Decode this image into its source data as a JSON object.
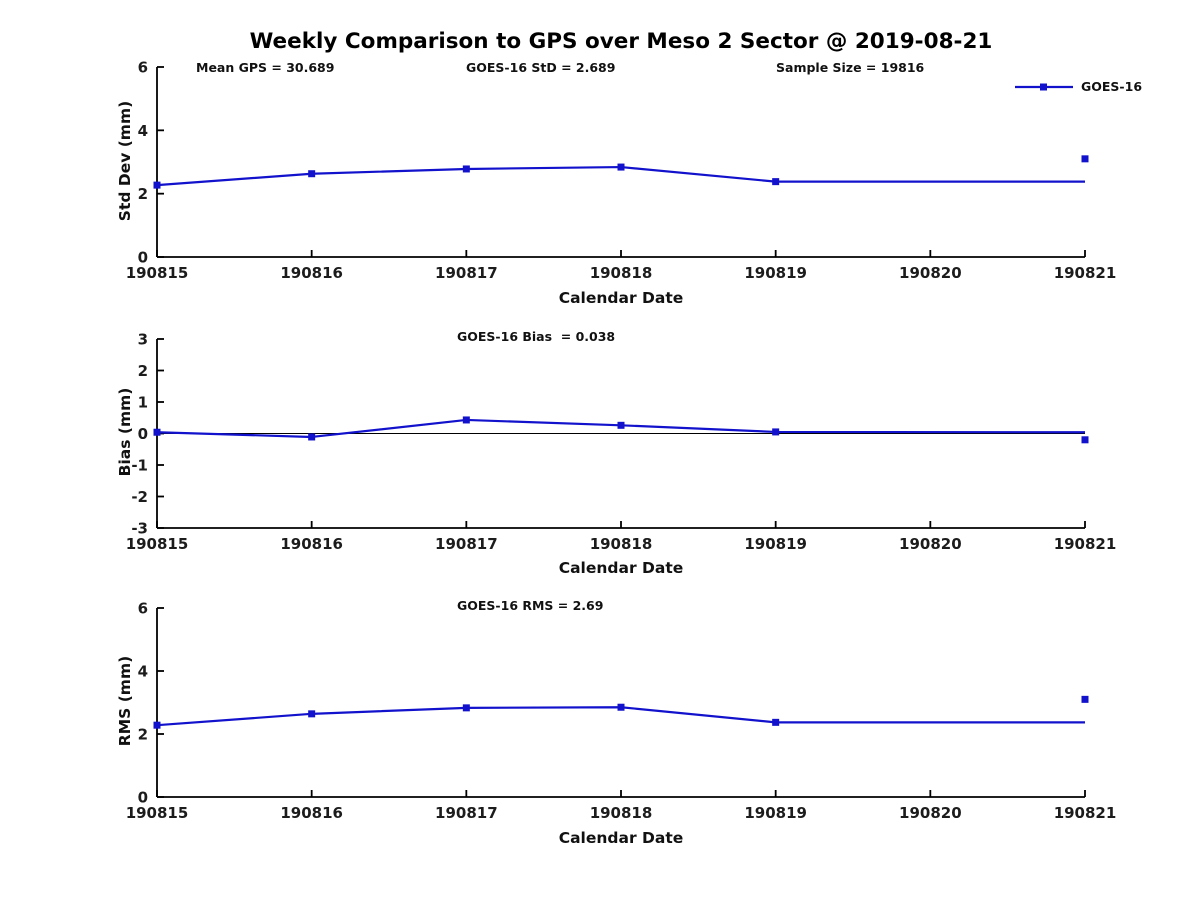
{
  "figure": {
    "title": "Weekly Comparison to GPS over Meso 2 Sector @ 2019-08-21",
    "background": "#ffffff"
  },
  "colors": {
    "series_blue": "#1212cc",
    "axis": "#000000",
    "tick_text": "#1c1c1c",
    "zero_line": "#000000"
  },
  "legend": {
    "label": "GOES-16"
  },
  "chart_data": [
    {
      "type": "line",
      "name": "std-dev",
      "annotations": [
        "Mean GPS = 30.689",
        "GOES-16 StD = 2.689",
        "Sample Size = 19816"
      ],
      "ylabel": "Std Dev (mm)",
      "xlabel": "Calendar Date",
      "ylim": [
        0,
        6
      ],
      "yticks": [
        0,
        2,
        4,
        6
      ],
      "xticks": [
        190815,
        190816,
        190817,
        190818,
        190819,
        190820,
        190821
      ],
      "xtick_labels": [
        "190815",
        "190816",
        "190817",
        "190818",
        "190819",
        "190820",
        "190821"
      ],
      "zero_line": false,
      "grid": false,
      "legend_position": "top-right-outside",
      "series": [
        {
          "name": "GOES-16",
          "x": [
            190815,
            190816,
            190817,
            190818,
            190819,
            190821
          ],
          "y": [
            2.27,
            2.63,
            2.78,
            2.84,
            2.38,
            2.38
          ],
          "marker_x": [
            190815,
            190816,
            190817,
            190818,
            190819
          ],
          "marker_y": [
            2.27,
            2.63,
            2.78,
            2.84,
            2.38
          ]
        }
      ],
      "isolated_point": {
        "x": 190821,
        "y": 3.1
      }
    },
    {
      "type": "line",
      "name": "bias",
      "annotations": [
        "GOES-16 Bias  = 0.038"
      ],
      "ylabel": "Bias (mm)",
      "xlabel": "Calendar Date",
      "ylim": [
        -3,
        3
      ],
      "yticks": [
        -3,
        -2,
        -1,
        0,
        1,
        2,
        3
      ],
      "xticks": [
        190815,
        190816,
        190817,
        190818,
        190819,
        190820,
        190821
      ],
      "xtick_labels": [
        "190815",
        "190816",
        "190817",
        "190818",
        "190819",
        "190820",
        "190821"
      ],
      "zero_line": true,
      "grid": false,
      "series": [
        {
          "name": "GOES-16",
          "x": [
            190815,
            190816,
            190817,
            190818,
            190819,
            190821
          ],
          "y": [
            0.04,
            -0.11,
            0.43,
            0.26,
            0.05,
            0.04
          ],
          "marker_x": [
            190815,
            190816,
            190817,
            190818,
            190819
          ],
          "marker_y": [
            0.04,
            -0.11,
            0.43,
            0.26,
            0.05
          ]
        }
      ],
      "isolated_point": {
        "x": 190821,
        "y": -0.2
      }
    },
    {
      "type": "line",
      "name": "rms",
      "annotations": [
        "GOES-16 RMS = 2.69"
      ],
      "ylabel": "RMS (mm)",
      "xlabel": "Calendar Date",
      "ylim": [
        0,
        6
      ],
      "yticks": [
        0,
        2,
        4,
        6
      ],
      "xticks": [
        190815,
        190816,
        190817,
        190818,
        190819,
        190820,
        190821
      ],
      "xtick_labels": [
        "190815",
        "190816",
        "190817",
        "190818",
        "190819",
        "190820",
        "190821"
      ],
      "zero_line": false,
      "grid": false,
      "series": [
        {
          "name": "GOES-16",
          "x": [
            190815,
            190816,
            190817,
            190818,
            190819,
            190821
          ],
          "y": [
            2.28,
            2.64,
            2.83,
            2.85,
            2.37,
            2.37
          ],
          "marker_x": [
            190815,
            190816,
            190817,
            190818,
            190819
          ],
          "marker_y": [
            2.28,
            2.64,
            2.83,
            2.85,
            2.37
          ]
        }
      ],
      "isolated_point": {
        "x": 190821,
        "y": 3.1
      }
    }
  ]
}
